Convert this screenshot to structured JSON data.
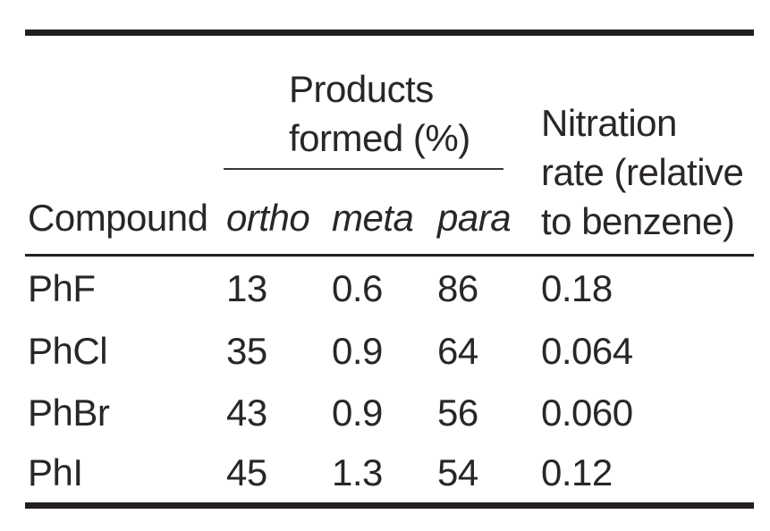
{
  "colors": {
    "background": "#ffffff",
    "text": "#2a2627",
    "rule_heavy": "#231f20",
    "rule_thin": "#3a3637"
  },
  "table": {
    "spanner_header": {
      "line1": "Products",
      "line2": "formed (%)"
    },
    "rate_header": {
      "line1": "Nitration",
      "line2": "rate (relative",
      "line3": "to benzene)"
    },
    "column_headers": {
      "compound": "Compound",
      "ortho": "ortho",
      "meta": "meta",
      "para": "para"
    },
    "rows": [
      {
        "compound": "PhF",
        "ortho": "13",
        "meta": "0.6",
        "para": "86",
        "rate": "0.18"
      },
      {
        "compound": "PhCl",
        "ortho": "35",
        "meta": "0.9",
        "para": "64",
        "rate": "0.064"
      },
      {
        "compound": "PhBr",
        "ortho": "43",
        "meta": "0.9",
        "para": "56",
        "rate": "0.060"
      },
      {
        "compound": "PhI",
        "ortho": "45",
        "meta": "1.3",
        "para": "54",
        "rate": "0.12"
      }
    ]
  },
  "chart_data": {
    "type": "table",
    "title": "",
    "column_groups": [
      {
        "label": "Products formed (%)",
        "columns": [
          "ortho",
          "meta",
          "para"
        ]
      }
    ],
    "columns": [
      "Compound",
      "ortho",
      "meta",
      "para",
      "Nitration rate (relative to benzene)"
    ],
    "rows": [
      [
        "PhF",
        13,
        0.6,
        86,
        0.18
      ],
      [
        "PhCl",
        35,
        0.9,
        64,
        0.064
      ],
      [
        "PhBr",
        43,
        0.9,
        56,
        0.06
      ],
      [
        "PhI",
        45,
        1.3,
        54,
        0.12
      ]
    ]
  }
}
